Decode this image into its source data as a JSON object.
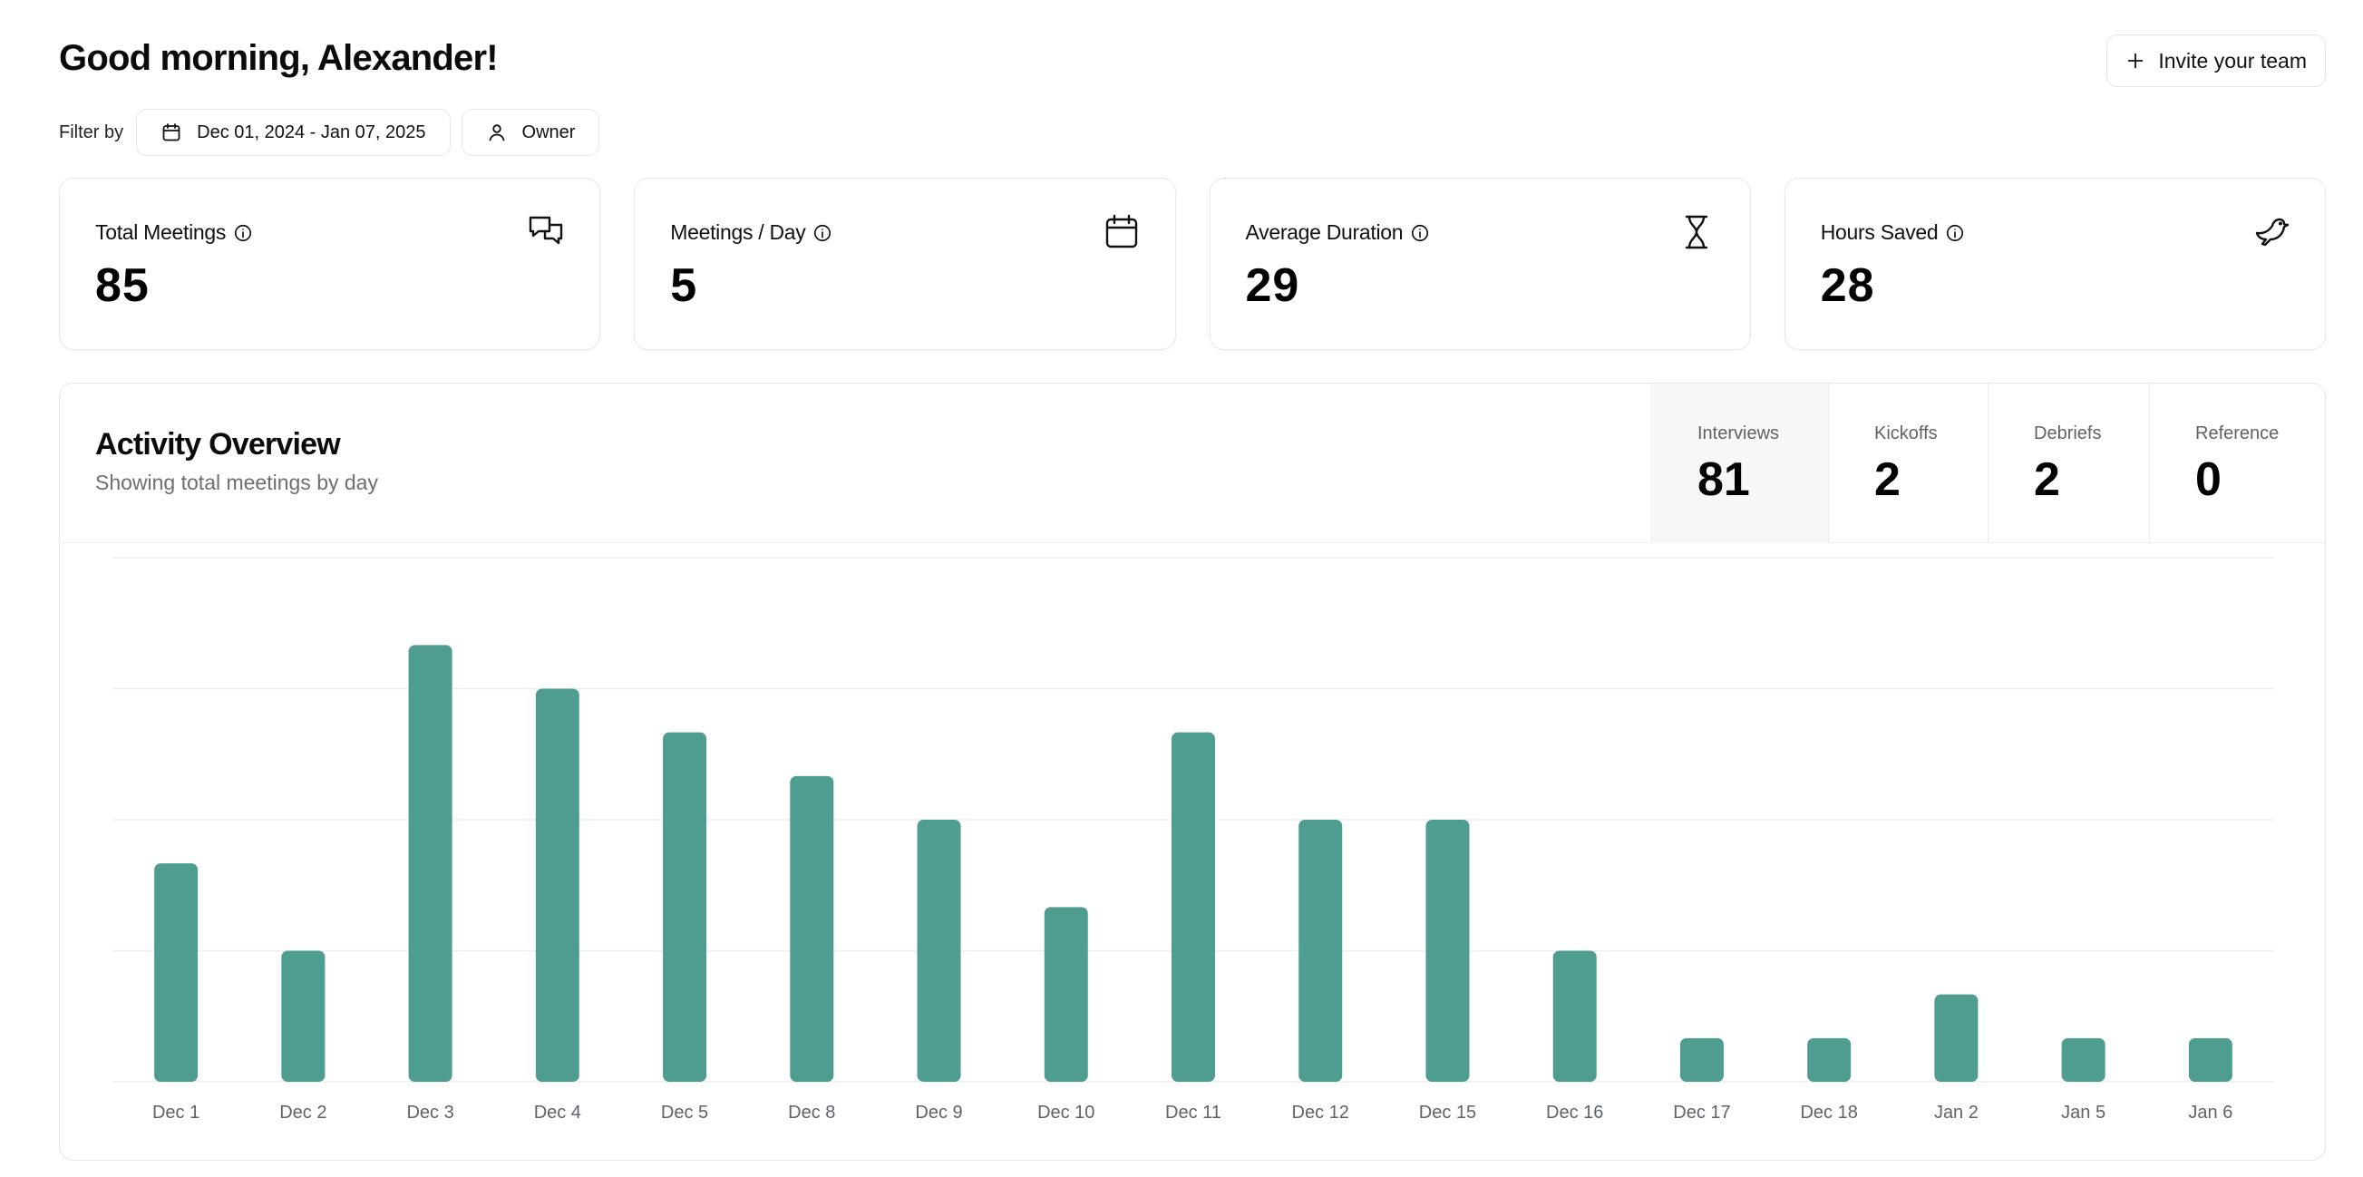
{
  "header": {
    "greeting": "Good morning, Alexander!",
    "invite_label": "Invite your team"
  },
  "filters": {
    "label": "Filter by",
    "date_range": "Dec 01, 2024 - Jan 07, 2025",
    "owner": "Owner"
  },
  "stats": [
    {
      "title": "Total Meetings",
      "value": "85",
      "icon": "chat-bubbles-icon"
    },
    {
      "title": "Meetings / Day",
      "value": "5",
      "icon": "calendar-icon"
    },
    {
      "title": "Average Duration",
      "value": "29",
      "icon": "hourglass-icon"
    },
    {
      "title": "Hours Saved",
      "value": "28",
      "icon": "bird-icon"
    }
  ],
  "activity": {
    "title": "Activity Overview",
    "subtitle": "Showing total meetings by day",
    "tabs": [
      {
        "label": "Interviews",
        "value": "81"
      },
      {
        "label": "Kickoffs",
        "value": "2"
      },
      {
        "label": "Debriefs",
        "value": "2"
      },
      {
        "label": "Reference",
        "value": "0"
      }
    ]
  },
  "colors": {
    "bar": "#4f9d90",
    "grid": "#eceeef"
  },
  "chart_data": {
    "type": "bar",
    "categories": [
      "Dec 1",
      "Dec 2",
      "Dec 3",
      "Dec 4",
      "Dec 5",
      "Dec 8",
      "Dec 9",
      "Dec 10",
      "Dec 11",
      "Dec 12",
      "Dec 15",
      "Dec 16",
      "Dec 17",
      "Dec 18",
      "Jan 2",
      "Jan 5",
      "Jan 6"
    ],
    "values": [
      5,
      3,
      10,
      9,
      8,
      7,
      6,
      4,
      8,
      6,
      6,
      3,
      1,
      1,
      2,
      1,
      1
    ],
    "ylim": [
      0,
      12
    ],
    "grid": true
  }
}
